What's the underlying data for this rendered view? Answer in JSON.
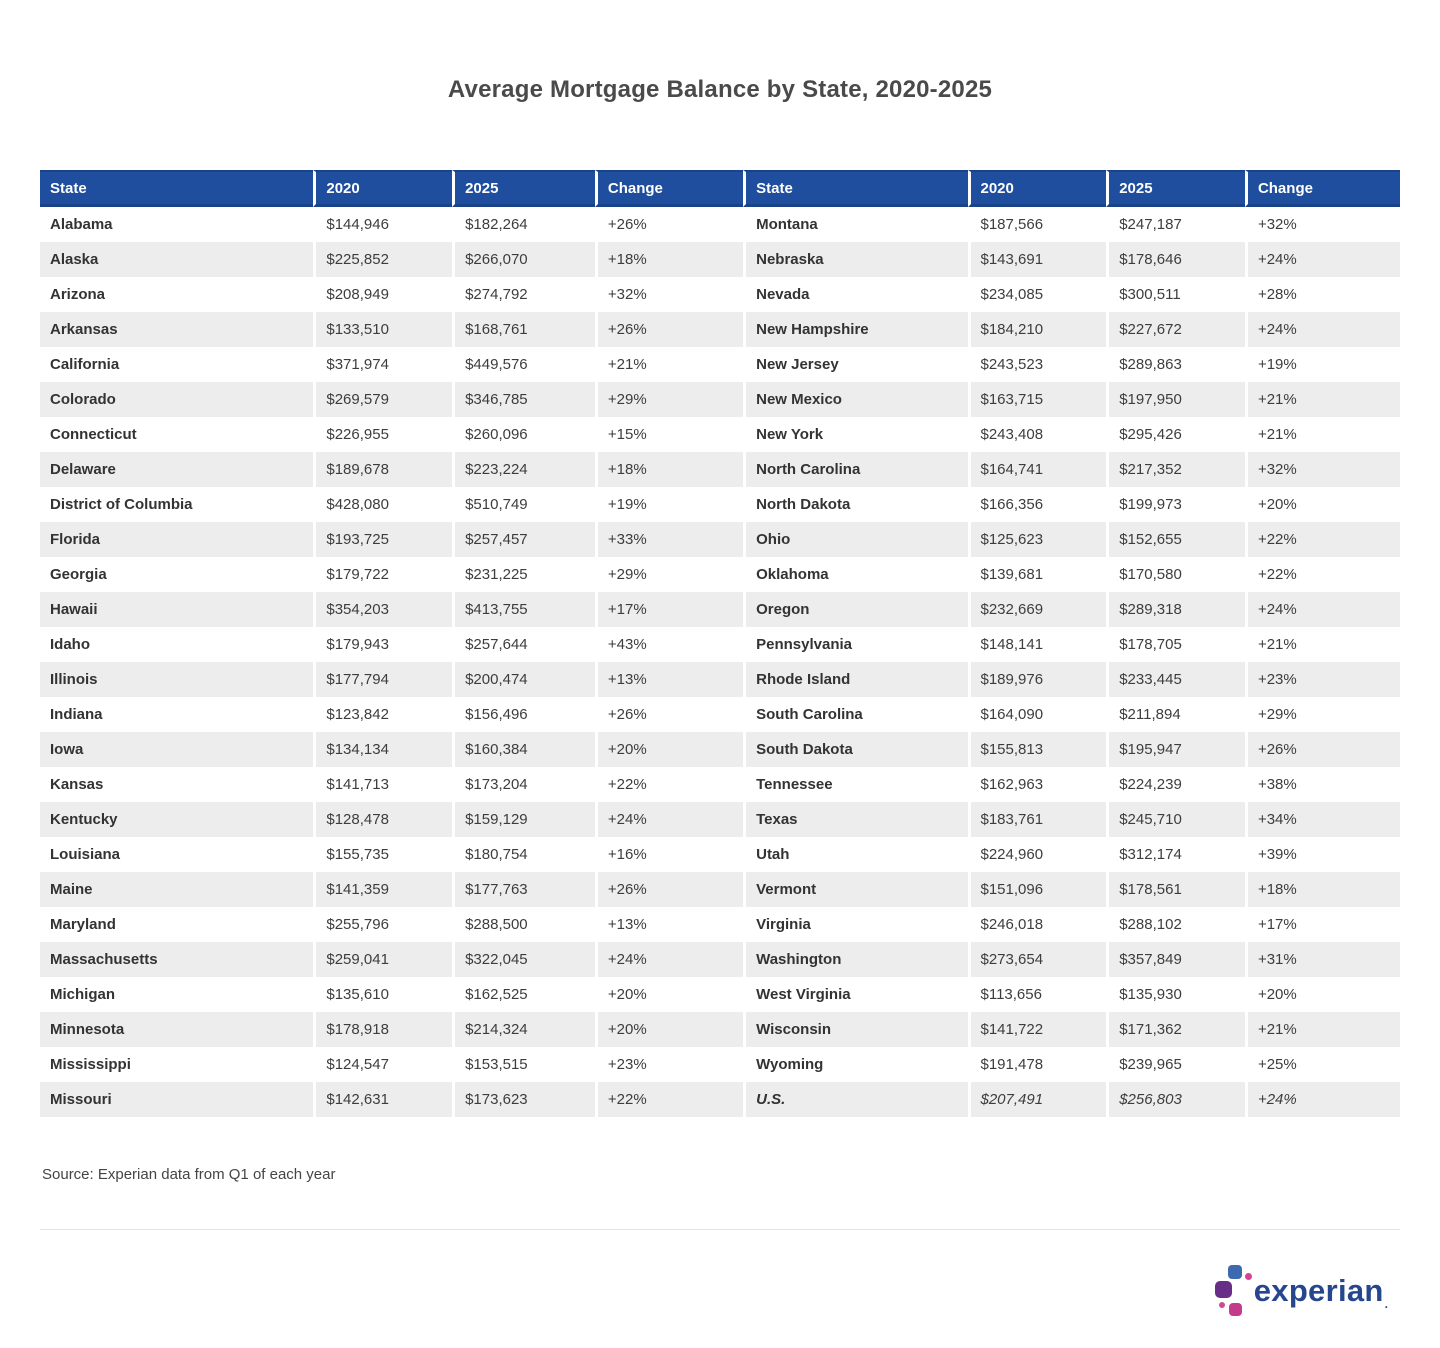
{
  "title": "Average Mortgage Balance by State, 2020-2025",
  "source_note": "Source: Experian data from Q1 of each year",
  "logo": {
    "text": "experian",
    "tm": "."
  },
  "colors": {
    "header_bg": "#1f4e9e",
    "row_stripe": "#ededed",
    "title_text": "#4a4a4a",
    "body_text": "#3d3d3d",
    "logo_blue": "#26478d",
    "logo_spot_blue": "#3d69b0",
    "logo_spot_purple": "#682e87",
    "logo_spot_magenta": "#c33c8c",
    "logo_spot_pink": "#d64294"
  },
  "chart_data": {
    "type": "table",
    "title": "Average Mortgage Balance by State, 2020-2025",
    "columns": [
      "State",
      "2020",
      "2025",
      "Change"
    ],
    "layout": "two side-by-side 4-column groups, striped rows",
    "rows": [
      {
        "cells": [
          "Alabama",
          "$144,946",
          "$182,264",
          "+26%",
          "Montana",
          "$187,566",
          "$247,187",
          "+32%"
        ]
      },
      {
        "cells": [
          "Alaska",
          "$225,852",
          "$266,070",
          "+18%",
          "Nebraska",
          "$143,691",
          "$178,646",
          "+24%"
        ]
      },
      {
        "cells": [
          "Arizona",
          "$208,949",
          "$274,792",
          "+32%",
          "Nevada",
          "$234,085",
          "$300,511",
          "+28%"
        ]
      },
      {
        "cells": [
          "Arkansas",
          "$133,510",
          "$168,761",
          "+26%",
          "New Hampshire",
          "$184,210",
          "$227,672",
          "+24%"
        ]
      },
      {
        "cells": [
          "California",
          "$371,974",
          "$449,576",
          "+21%",
          "New Jersey",
          "$243,523",
          "$289,863",
          "+19%"
        ]
      },
      {
        "cells": [
          "Colorado",
          "$269,579",
          "$346,785",
          "+29%",
          "New Mexico",
          "$163,715",
          "$197,950",
          "+21%"
        ]
      },
      {
        "cells": [
          "Connecticut",
          "$226,955",
          "$260,096",
          "+15%",
          "New York",
          "$243,408",
          "$295,426",
          "+21%"
        ]
      },
      {
        "cells": [
          "Delaware",
          "$189,678",
          "$223,224",
          "+18%",
          "North Carolina",
          "$164,741",
          "$217,352",
          "+32%"
        ]
      },
      {
        "cells": [
          "District of Columbia",
          "$428,080",
          "$510,749",
          "+19%",
          "North Dakota",
          "$166,356",
          "$199,973",
          "+20%"
        ]
      },
      {
        "cells": [
          "Florida",
          "$193,725",
          "$257,457",
          "+33%",
          "Ohio",
          "$125,623",
          "$152,655",
          "+22%"
        ]
      },
      {
        "cells": [
          "Georgia",
          "$179,722",
          "$231,225",
          "+29%",
          "Oklahoma",
          "$139,681",
          "$170,580",
          "+22%"
        ]
      },
      {
        "cells": [
          "Hawaii",
          "$354,203",
          "$413,755",
          "+17%",
          "Oregon",
          "$232,669",
          "$289,318",
          "+24%"
        ]
      },
      {
        "cells": [
          "Idaho",
          "$179,943",
          "$257,644",
          "+43%",
          "Pennsylvania",
          "$148,141",
          "$178,705",
          "+21%"
        ]
      },
      {
        "cells": [
          "Illinois",
          "$177,794",
          "$200,474",
          "+13%",
          "Rhode Island",
          "$189,976",
          "$233,445",
          "+23%"
        ]
      },
      {
        "cells": [
          "Indiana",
          "$123,842",
          "$156,496",
          "+26%",
          "South Carolina",
          "$164,090",
          "$211,894",
          "+29%"
        ]
      },
      {
        "cells": [
          "Iowa",
          "$134,134",
          "$160,384",
          "+20%",
          "South Dakota",
          "$155,813",
          "$195,947",
          "+26%"
        ]
      },
      {
        "cells": [
          "Kansas",
          "$141,713",
          "$173,204",
          "+22%",
          "Tennessee",
          "$162,963",
          "$224,239",
          "+38%"
        ]
      },
      {
        "cells": [
          "Kentucky",
          "$128,478",
          "$159,129",
          "+24%",
          "Texas",
          "$183,761",
          "$245,710",
          "+34%"
        ]
      },
      {
        "cells": [
          "Louisiana",
          "$155,735",
          "$180,754",
          "+16%",
          "Utah",
          "$224,960",
          "$312,174",
          "+39%"
        ]
      },
      {
        "cells": [
          "Maine",
          "$141,359",
          "$177,763",
          "+26%",
          "Vermont",
          "$151,096",
          "$178,561",
          "+18%"
        ]
      },
      {
        "cells": [
          "Maryland",
          "$255,796",
          "$288,500",
          "+13%",
          "Virginia",
          "$246,018",
          "$288,102",
          "+17%"
        ]
      },
      {
        "cells": [
          "Massachusetts",
          "$259,041",
          "$322,045",
          "+24%",
          "Washington",
          "$273,654",
          "$357,849",
          "+31%"
        ]
      },
      {
        "cells": [
          "Michigan",
          "$135,610",
          "$162,525",
          "+20%",
          "West Virginia",
          "$113,656",
          "$135,930",
          "+20%"
        ]
      },
      {
        "cells": [
          "Minnesota",
          "$178,918",
          "$214,324",
          "+20%",
          "Wisconsin",
          "$141,722",
          "$171,362",
          "+21%"
        ]
      },
      {
        "cells": [
          "Mississippi",
          "$124,547",
          "$153,515",
          "+23%",
          "Wyoming",
          "$191,478",
          "$239,965",
          "+25%"
        ]
      },
      {
        "cells": [
          "Missouri",
          "$142,631",
          "$173,623",
          "+22%",
          "U.S.",
          "$207,491",
          "$256,803",
          "+24%"
        ],
        "italic_start": 4
      }
    ]
  }
}
